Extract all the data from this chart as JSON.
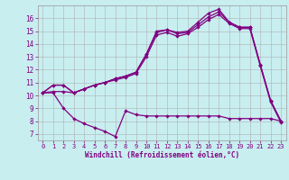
{
  "bg_color": "#c8eef0",
  "line_color": "#800080",
  "grid_color": "#b0b0b0",
  "xlabel": "Windchill (Refroidissement éolien,°C)",
  "xlabel_color": "#800080",
  "tick_color": "#800080",
  "xlim": [
    -0.5,
    23.5
  ],
  "ylim": [
    6.5,
    17.0
  ],
  "yticks": [
    7,
    8,
    9,
    10,
    11,
    12,
    13,
    14,
    15,
    16
  ],
  "xticks": [
    0,
    1,
    2,
    3,
    4,
    5,
    6,
    7,
    8,
    9,
    10,
    11,
    12,
    13,
    14,
    15,
    16,
    17,
    18,
    19,
    20,
    21,
    22,
    23
  ],
  "line1_x": [
    0,
    1,
    2,
    3,
    4,
    5,
    6,
    7,
    8,
    9,
    10,
    11,
    12,
    13,
    14,
    15,
    16,
    17,
    18,
    19,
    20,
    21,
    22,
    23
  ],
  "line1_y": [
    10.2,
    10.8,
    10.8,
    10.2,
    10.5,
    10.8,
    11.0,
    11.3,
    11.5,
    11.8,
    13.2,
    15.0,
    15.1,
    14.9,
    15.0,
    15.7,
    16.4,
    16.7,
    15.7,
    15.3,
    15.3,
    12.4,
    9.6,
    8.0
  ],
  "line2_x": [
    0,
    1,
    2,
    3,
    4,
    5,
    6,
    7,
    8,
    9,
    10,
    11,
    12,
    13,
    14,
    15,
    16,
    17,
    18,
    19,
    20,
    21,
    22,
    23
  ],
  "line2_y": [
    10.2,
    10.8,
    10.8,
    10.2,
    10.5,
    10.8,
    11.0,
    11.3,
    11.5,
    11.8,
    13.2,
    14.9,
    15.1,
    14.8,
    14.9,
    15.5,
    16.1,
    16.5,
    15.7,
    15.3,
    15.3,
    12.4,
    9.6,
    8.0
  ],
  "line3_x": [
    0,
    1,
    2,
    3,
    4,
    5,
    6,
    7,
    8,
    9,
    10,
    11,
    12,
    13,
    14,
    15,
    16,
    17,
    18,
    19,
    20,
    21,
    22,
    23
  ],
  "line3_y": [
    10.2,
    10.3,
    10.3,
    10.2,
    10.5,
    10.8,
    11.0,
    11.2,
    11.4,
    11.7,
    13.0,
    14.7,
    14.9,
    14.6,
    14.8,
    15.3,
    15.9,
    16.3,
    15.6,
    15.2,
    15.2,
    12.3,
    9.5,
    7.9
  ],
  "line4_x": [
    0,
    1,
    2,
    3,
    4,
    5,
    6,
    7,
    8,
    9,
    10,
    11,
    12,
    13,
    14,
    15,
    16,
    17,
    18,
    19,
    20,
    21,
    22,
    23
  ],
  "line4_y": [
    10.2,
    10.2,
    9.0,
    8.2,
    7.8,
    7.5,
    7.2,
    6.8,
    8.8,
    8.5,
    8.4,
    8.4,
    8.4,
    8.4,
    8.4,
    8.4,
    8.4,
    8.4,
    8.2,
    8.2,
    8.2,
    8.2,
    8.2,
    8.0
  ]
}
